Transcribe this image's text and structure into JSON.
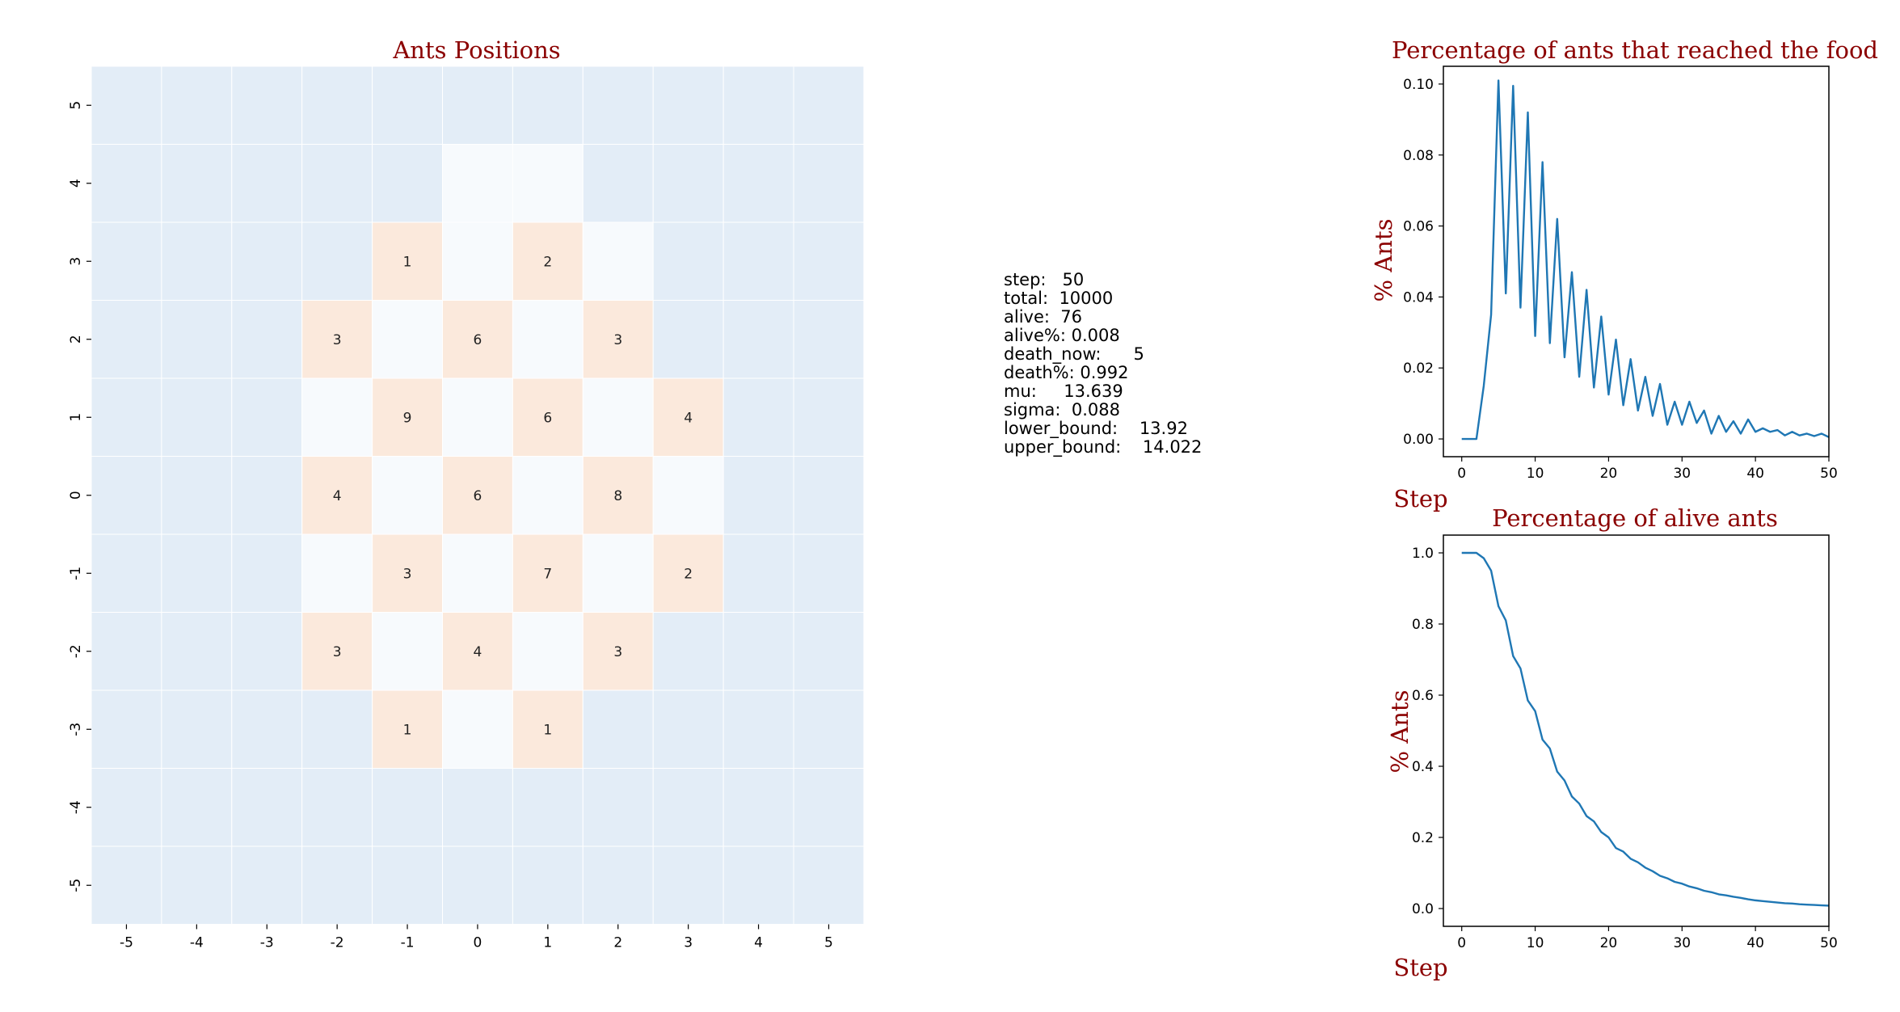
{
  "chart_data": [
    {
      "type": "heatmap",
      "title": "Ants Positions",
      "x_ticks": [
        "-5",
        "-4",
        "-3",
        "-2",
        "-1",
        "0",
        "1",
        "2",
        "3",
        "4",
        "5"
      ],
      "y_ticks": [
        "5",
        "4",
        "3",
        "2",
        "1",
        "0",
        "-1",
        "-2",
        "-3",
        "-4",
        "-5"
      ],
      "colors": {
        "background": "#e3edf7",
        "visited": "#f7fafd",
        "occupied": "#fbe9dc",
        "gridline": "#ffffff"
      },
      "visited_cells": [
        [
          0,
          4
        ],
        [
          1,
          4
        ],
        [
          0,
          3
        ],
        [
          2,
          3
        ],
        [
          -1,
          2
        ],
        [
          1,
          2
        ],
        [
          -2,
          1
        ],
        [
          0,
          1
        ],
        [
          2,
          1
        ],
        [
          -1,
          0
        ],
        [
          1,
          0
        ],
        [
          3,
          0
        ],
        [
          -2,
          -1
        ],
        [
          0,
          -1
        ],
        [
          2,
          -1
        ],
        [
          -1,
          -2
        ],
        [
          1,
          -2
        ],
        [
          0,
          -3
        ]
      ],
      "occupied_cells": [
        {
          "x": -1,
          "y": 3,
          "value": 1
        },
        {
          "x": 1,
          "y": 3,
          "value": 2
        },
        {
          "x": -2,
          "y": 2,
          "value": 3
        },
        {
          "x": 0,
          "y": 2,
          "value": 6
        },
        {
          "x": 2,
          "y": 2,
          "value": 3
        },
        {
          "x": -1,
          "y": 1,
          "value": 9
        },
        {
          "x": 1,
          "y": 1,
          "value": 6
        },
        {
          "x": 3,
          "y": 1,
          "value": 4
        },
        {
          "x": -2,
          "y": 0,
          "value": 4
        },
        {
          "x": 0,
          "y": 0,
          "value": 6
        },
        {
          "x": 2,
          "y": 0,
          "value": 8
        },
        {
          "x": -1,
          "y": -1,
          "value": 3
        },
        {
          "x": 1,
          "y": -1,
          "value": 7
        },
        {
          "x": 3,
          "y": -1,
          "value": 2
        },
        {
          "x": -2,
          "y": -2,
          "value": 3
        },
        {
          "x": 0,
          "y": -2,
          "value": 4
        },
        {
          "x": 2,
          "y": -2,
          "value": 3
        },
        {
          "x": -1,
          "y": -3,
          "value": 1
        },
        {
          "x": 1,
          "y": -3,
          "value": 1
        }
      ]
    },
    {
      "type": "line",
      "title": "Percentage of ants that reached the food",
      "xlabel": "Step",
      "ylabel": "% Ants",
      "xlim": [
        -2.5,
        50
      ],
      "ylim": [
        -0.005,
        0.105
      ],
      "x_ticks": [
        0,
        10,
        20,
        30,
        40,
        50
      ],
      "y_ticks": [
        0.0,
        0.02,
        0.04,
        0.06,
        0.08,
        0.1
      ],
      "y_tick_labels": [
        "0.00",
        "0.02",
        "0.04",
        "0.06",
        "0.08",
        "0.10"
      ],
      "color": "#1f77b4",
      "series": [
        {
          "x": [
            0,
            1,
            2,
            3,
            4,
            5,
            6,
            7,
            8,
            9,
            10,
            11,
            12,
            13,
            14,
            15,
            16,
            17,
            18,
            19,
            20,
            21,
            22,
            23,
            24,
            25,
            26,
            27,
            28,
            29,
            30,
            31,
            32,
            33,
            34,
            35,
            36,
            37,
            38,
            39,
            40,
            41,
            42,
            43,
            44,
            45,
            46,
            47,
            48,
            49,
            50
          ],
          "values": [
            0,
            0,
            0,
            0.015,
            0.035,
            0.101,
            0.041,
            0.0995,
            0.037,
            0.092,
            0.029,
            0.078,
            0.027,
            0.062,
            0.023,
            0.047,
            0.0175,
            0.042,
            0.0145,
            0.0345,
            0.0125,
            0.028,
            0.0095,
            0.0225,
            0.008,
            0.0175,
            0.0065,
            0.0155,
            0.004,
            0.0105,
            0.004,
            0.0105,
            0.0045,
            0.008,
            0.0015,
            0.0065,
            0.002,
            0.005,
            0.0015,
            0.0055,
            0.002,
            0.003,
            0.002,
            0.0025,
            0.001,
            0.002,
            0.001,
            0.0015,
            0.0008,
            0.0015,
            0.0005
          ]
        }
      ]
    },
    {
      "type": "line",
      "title": "Percentage of alive ants",
      "xlabel": "Step",
      "ylabel": "% Ants",
      "xlim": [
        -2.5,
        50
      ],
      "ylim": [
        -0.05,
        1.05
      ],
      "x_ticks": [
        0,
        10,
        20,
        30,
        40,
        50
      ],
      "y_ticks": [
        0.0,
        0.2,
        0.4,
        0.6,
        0.8,
        1.0
      ],
      "y_tick_labels": [
        "0.0",
        "0.2",
        "0.4",
        "0.6",
        "0.8",
        "1.0"
      ],
      "color": "#1f77b4",
      "series": [
        {
          "x": [
            0,
            1,
            2,
            3,
            4,
            5,
            6,
            7,
            8,
            9,
            10,
            11,
            12,
            13,
            14,
            15,
            16,
            17,
            18,
            19,
            20,
            21,
            22,
            23,
            24,
            25,
            26,
            27,
            28,
            29,
            30,
            31,
            32,
            33,
            34,
            35,
            36,
            37,
            38,
            39,
            40,
            41,
            42,
            43,
            44,
            45,
            46,
            47,
            48,
            49,
            50
          ],
          "values": [
            1.0,
            1.0,
            1.0,
            0.985,
            0.95,
            0.85,
            0.81,
            0.71,
            0.675,
            0.585,
            0.555,
            0.475,
            0.45,
            0.385,
            0.36,
            0.315,
            0.295,
            0.26,
            0.245,
            0.215,
            0.2,
            0.17,
            0.16,
            0.14,
            0.13,
            0.115,
            0.105,
            0.092,
            0.085,
            0.075,
            0.07,
            0.062,
            0.057,
            0.05,
            0.046,
            0.04,
            0.037,
            0.033,
            0.03,
            0.026,
            0.023,
            0.021,
            0.019,
            0.017,
            0.015,
            0.014,
            0.012,
            0.011,
            0.01,
            0.009,
            0.008
          ]
        }
      ]
    }
  ],
  "stats": {
    "lines": [
      "step:   50",
      "total:  10000",
      "alive:  76",
      "alive%: 0.008",
      "death_now:      5",
      "death%: 0.992",
      "mu:     13.639",
      "sigma:  0.088",
      "lower_bound:    13.92",
      "upper_bound:    14.022"
    ]
  }
}
